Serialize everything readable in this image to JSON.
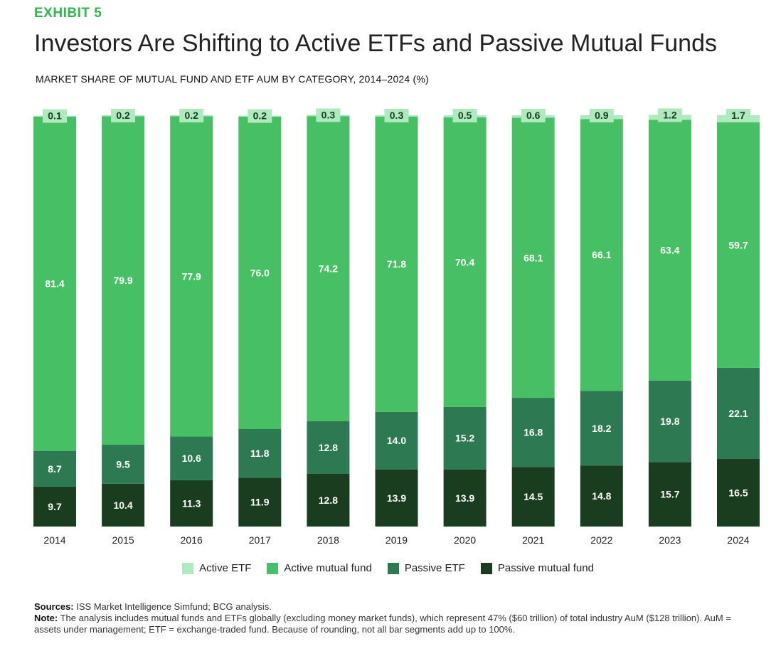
{
  "header": {
    "exhibit": "EXHIBIT 5",
    "title": "Investors Are Shifting to Active ETFs and Passive Mutual Funds",
    "subtitle": "MARKET SHARE OF MUTUAL FUND AND ETF AUM BY CATEGORY, 2014–2024 (%)"
  },
  "chart_data": {
    "type": "bar",
    "stacked": true,
    "categories": [
      "2014",
      "2015",
      "2016",
      "2017",
      "2018",
      "2019",
      "2020",
      "2021",
      "2022",
      "2023",
      "2024"
    ],
    "series": [
      {
        "name": "Passive mutual fund",
        "color": "#1b3d1f",
        "values": [
          9.7,
          10.4,
          11.3,
          11.9,
          12.8,
          13.9,
          13.9,
          14.5,
          14.8,
          15.7,
          16.5
        ]
      },
      {
        "name": "Passive ETF",
        "color": "#2d7a52",
        "values": [
          8.7,
          9.5,
          10.6,
          11.8,
          12.8,
          14.0,
          15.2,
          16.8,
          18.2,
          19.8,
          22.1
        ]
      },
      {
        "name": "Active mutual fund",
        "color": "#47bf64",
        "values": [
          81.4,
          79.9,
          77.9,
          76.0,
          74.2,
          71.8,
          70.4,
          68.1,
          66.1,
          63.4,
          59.7
        ]
      },
      {
        "name": "Active ETF",
        "color": "#aeeabd",
        "values": [
          0.1,
          0.2,
          0.2,
          0.2,
          0.3,
          0.3,
          0.5,
          0.6,
          0.9,
          1.2,
          1.7
        ]
      }
    ],
    "ylim": [
      0,
      100
    ],
    "legend_position": "bottom"
  },
  "legend": [
    {
      "label": "Active ETF",
      "color": "#aeeabd"
    },
    {
      "label": "Active mutual fund",
      "color": "#47bf64"
    },
    {
      "label": "Passive ETF",
      "color": "#2d7a52"
    },
    {
      "label": "Passive mutual fund",
      "color": "#1b3d1f"
    }
  ],
  "notes": {
    "sources_label": "Sources:",
    "sources_text": "ISS Market Intelligence Simfund; BCG analysis.",
    "note_label": "Note:",
    "note_text": "The analysis includes mutual funds and ETFs globally (excluding money market funds), which represent 47% ($60 trillion) of total industry AuM ($128 trillion). AuM = assets under management; ETF = exchange-traded fund. Because of rounding, not all bar segments add up to 100%."
  }
}
